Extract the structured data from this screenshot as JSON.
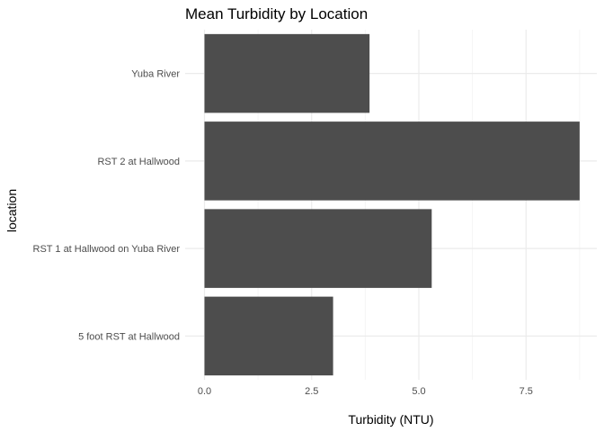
{
  "chart_data": {
    "type": "bar",
    "orientation": "horizontal",
    "title": "Mean Turbidity by Location",
    "xlabel": "Turbidity (NTU)",
    "ylabel": "location",
    "categories": [
      "5 foot RST at Hallwood",
      "RST 1 at Hallwood on Yuba River",
      "RST 2 at Hallwood",
      "Yuba River"
    ],
    "values": [
      3.0,
      5.3,
      8.75,
      3.85
    ],
    "xlim": [
      0,
      9.2
    ],
    "xticks": [
      0,
      2.5,
      5,
      7.5
    ],
    "xtick_labels": [
      "0.0",
      "2.5",
      "5.0",
      "7.5"
    ],
    "grid": true,
    "colors": {
      "bar": "#4d4d4d",
      "grid_major": "#ebebeb",
      "grid_minor": "#f5f5f5"
    }
  }
}
